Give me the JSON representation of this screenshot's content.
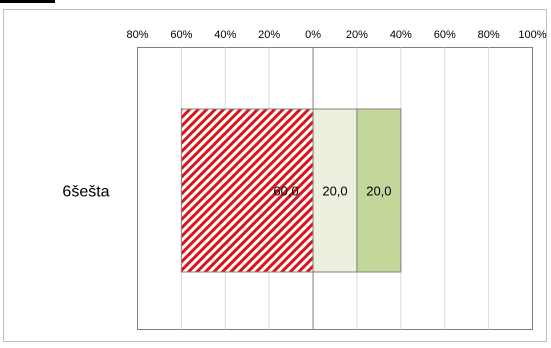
{
  "chart_data": {
    "type": "bar",
    "orientation": "horizontal",
    "stacked": true,
    "diverging": true,
    "categories": [
      "6šešta"
    ],
    "x_ticks": [
      "80%",
      "60%",
      "40%",
      "20%",
      "0%",
      "20%",
      "40%",
      "60%",
      "80%",
      "100%"
    ],
    "xlim": [
      -80,
      100
    ],
    "grid": true,
    "series": [
      {
        "values": [
          -60.0
        ],
        "label": "60,0",
        "color": "#d9141b",
        "pattern": "diagonal-hatch"
      },
      {
        "values": [
          20.0
        ],
        "label": "20,0",
        "color": "#ebf1de"
      },
      {
        "values": [
          20.0
        ],
        "label": "20,0",
        "color": "#c4d79b"
      }
    ]
  }
}
